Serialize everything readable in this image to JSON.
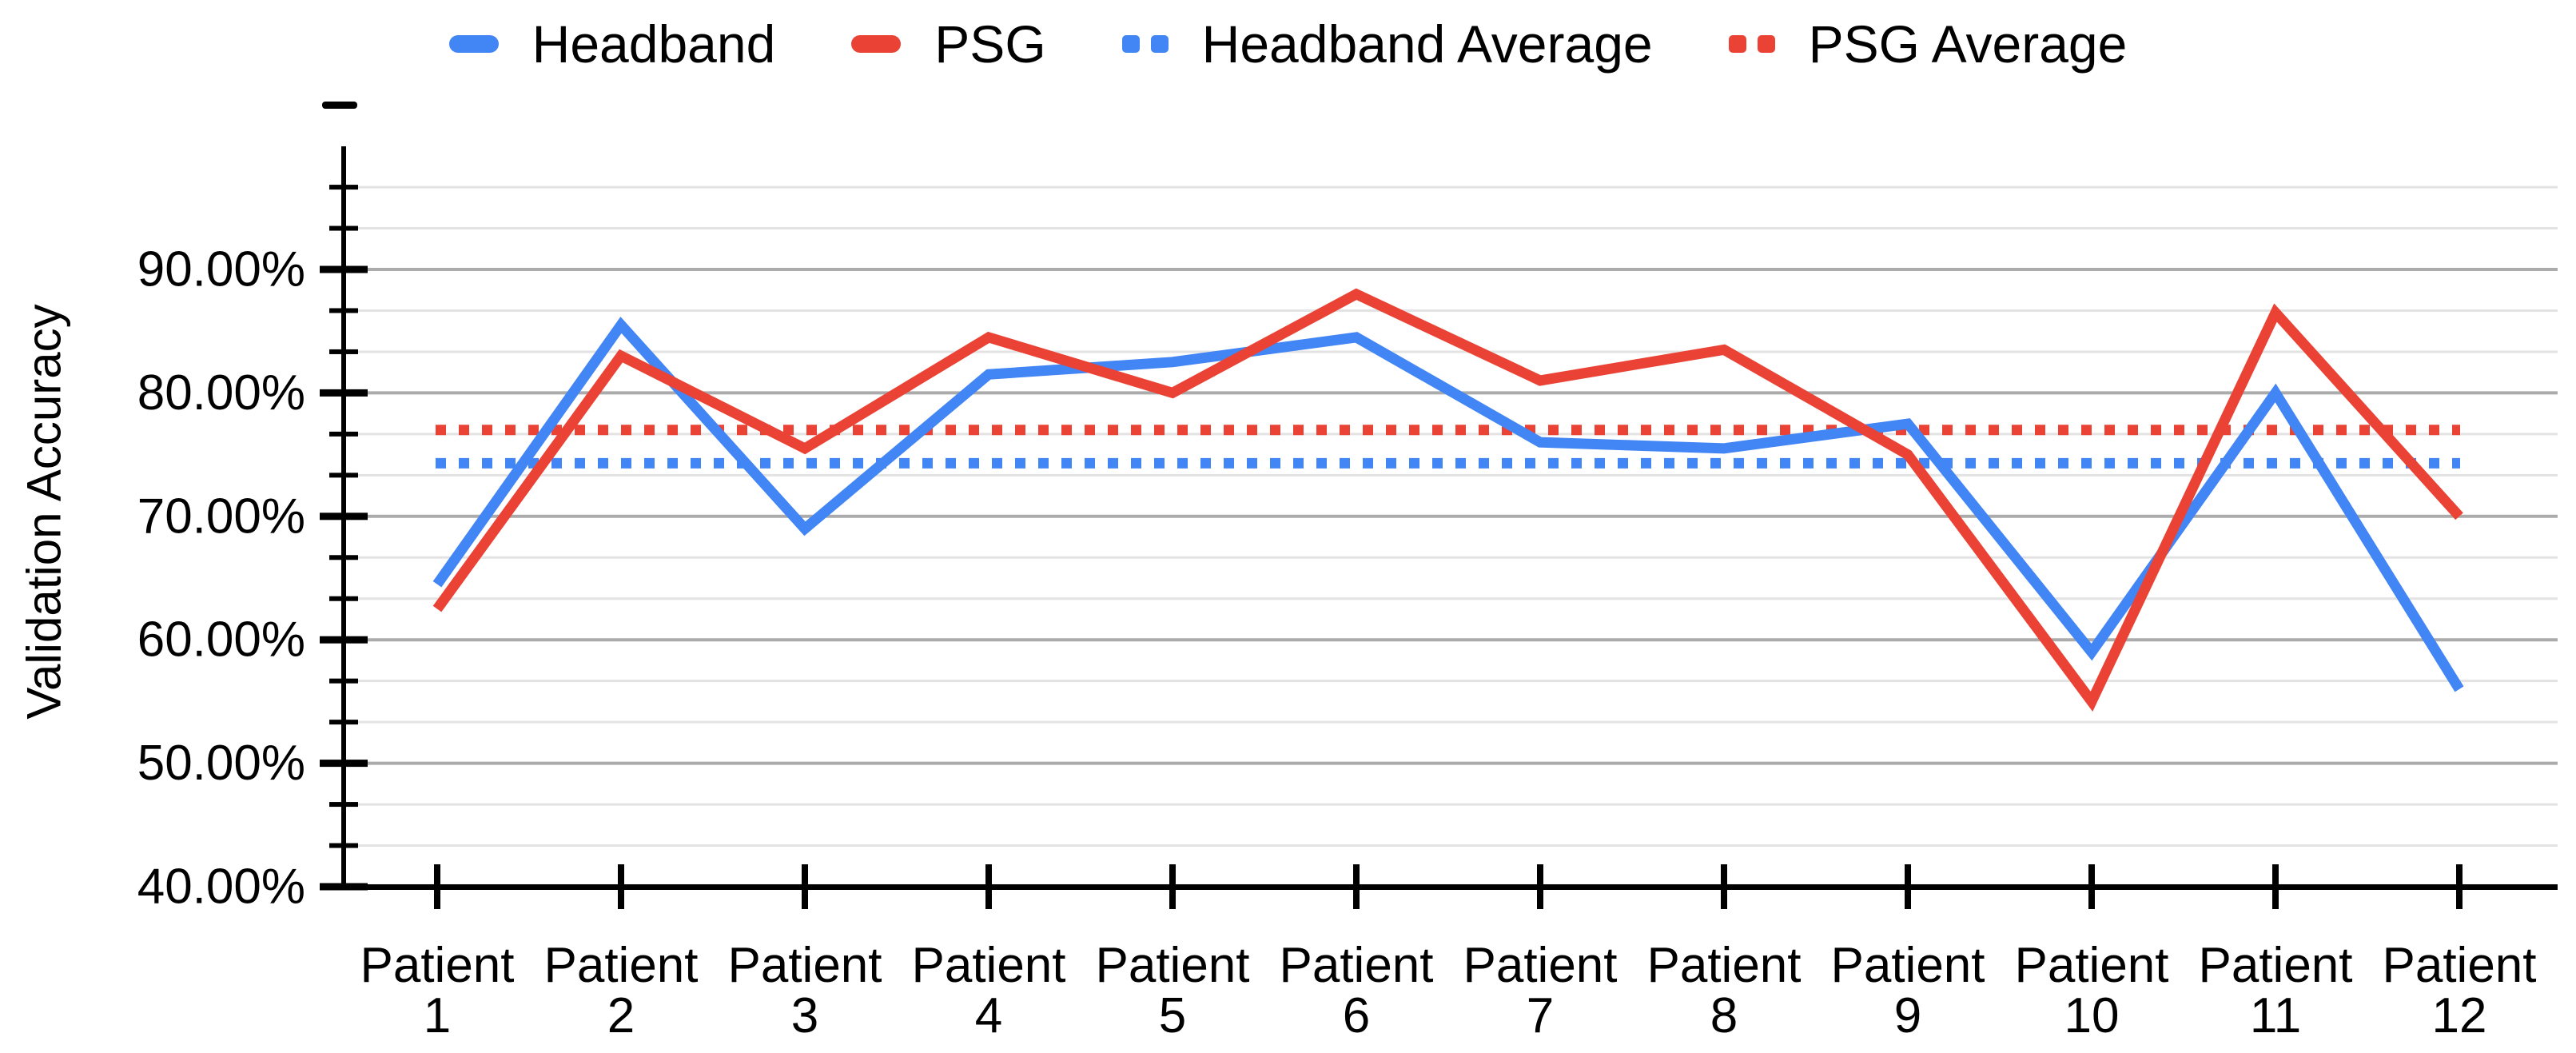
{
  "chart_data": {
    "type": "line",
    "title": "",
    "xlabel": "",
    "ylabel": "Validation Accuracy",
    "categories": [
      "Patient 1",
      "Patient 2",
      "Patient 3",
      "Patient 4",
      "Patient 5",
      "Patient 6",
      "Patient 7",
      "Patient 8",
      "Patient 9",
      "Patient 10",
      "Patient 11",
      "Patient 12"
    ],
    "series": [
      {
        "name": "Headband",
        "style": "solid",
        "color": "#4285F4",
        "values": [
          64.5,
          85.5,
          69,
          81.5,
          82.5,
          84.5,
          76,
          75.5,
          77.5,
          59,
          80,
          56
        ]
      },
      {
        "name": "PSG",
        "style": "solid",
        "color": "#EA4335",
        "values": [
          62.5,
          83,
          75.5,
          84.5,
          80,
          88,
          81,
          83.5,
          75,
          55,
          86.5,
          70
        ]
      },
      {
        "name": "Headband Average",
        "style": "dotted",
        "color": "#4285F4",
        "average_of": "Headband",
        "value": 74.3
      },
      {
        "name": "PSG Average",
        "style": "dotted",
        "color": "#EA4335",
        "average_of": "PSG",
        "value": 77.0
      }
    ],
    "y_axis": {
      "min": 40,
      "max": 100,
      "tick_values": [
        40,
        50,
        60,
        70,
        80,
        90
      ],
      "tick_labels": [
        "40.00%",
        "50.00%",
        "60.00%",
        "70.00%",
        "80.00%",
        "90.00%"
      ],
      "minor_step": 3.3333,
      "format": "percent"
    },
    "grid": true,
    "legend_position": "top",
    "colors": {
      "major_gridline": "#ababab",
      "minor_gridline": "#e3e3e3",
      "axis": "#000000",
      "text": "#000000"
    }
  }
}
